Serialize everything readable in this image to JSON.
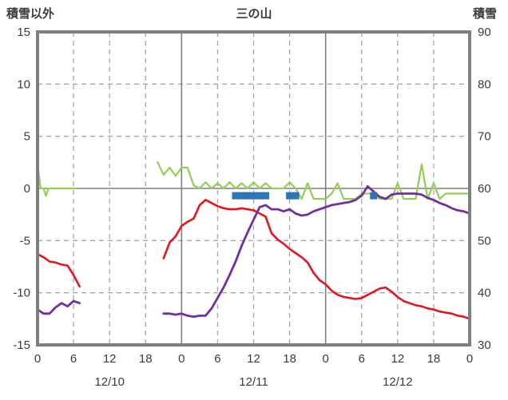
{
  "header": {
    "left_axis_title": "積雪以外",
    "chart_title": "三の山",
    "right_axis_title": "積雪"
  },
  "colors": {
    "background": "#ffffff",
    "frame": "#7f7f7f",
    "grid": "#a6a6a6",
    "text": "#3b3b3b",
    "red_series": "#e8141c",
    "purple_series": "#7030a0",
    "green_series": "#92d050",
    "blue_marker": "#2e75b6"
  },
  "chart_data": {
    "type": "line",
    "title": "三の山",
    "grid": true,
    "legend_position": "none",
    "left_axis": {
      "title": "積雪以外",
      "min": -15,
      "max": 15,
      "ticks": [
        15,
        10,
        5,
        0,
        -5,
        -10,
        -15
      ]
    },
    "right_axis": {
      "title": "積雪",
      "min": 30,
      "max": 90,
      "ticks": [
        90,
        80,
        70,
        60,
        50,
        40,
        30
      ]
    },
    "x_axis": {
      "min": 0,
      "max": 72,
      "tick_hours": [
        0,
        6,
        12,
        18,
        24,
        30,
        36,
        42,
        48,
        54,
        60,
        66,
        72
      ],
      "tick_labels": [
        "0",
        "6",
        "12",
        "18",
        "0",
        "6",
        "12",
        "18",
        "0",
        "6",
        "12",
        "18",
        "0"
      ],
      "day_boundaries": [
        24,
        48
      ],
      "day_labels": [
        {
          "label": "12/10",
          "center_hour": 12
        },
        {
          "label": "12/11",
          "center_hour": 36
        },
        {
          "label": "12/12",
          "center_hour": 60
        }
      ]
    },
    "series": [
      {
        "name": "green-series",
        "color": "#92d050",
        "axis": "left",
        "width": 2.2,
        "segments": [
          {
            "x": [
              0,
              0.5,
              1,
              1.4,
              1.8,
              6.5
            ],
            "y": [
              2.3,
              0,
              0,
              -0.7,
              0,
              0
            ]
          },
          {
            "x": [
              20,
              21,
              22,
              23,
              24,
              25,
              26,
              27,
              28,
              29,
              30,
              31,
              32,
              33,
              34,
              35,
              36,
              37,
              38,
              39,
              40,
              41,
              42,
              43,
              44,
              45,
              46,
              47,
              48,
              49,
              50,
              51,
              52,
              53,
              54,
              55,
              56,
              57,
              58,
              59,
              60,
              61,
              62,
              63,
              64,
              65,
              66,
              67,
              68,
              69,
              70,
              71,
              72
            ],
            "y": [
              2.5,
              1.3,
              2.0,
              1.2,
              2.0,
              2.0,
              0.3,
              0,
              0.6,
              0,
              0.5,
              0,
              0.6,
              0,
              0.5,
              0,
              0.6,
              0,
              0.5,
              0,
              0,
              0,
              0.6,
              0,
              -1.0,
              0.5,
              -1.0,
              -1.0,
              -1.0,
              -0.5,
              0.5,
              -1.0,
              -1.0,
              -1.0,
              -0.5,
              -0.5,
              -0.5,
              -1.0,
              -1.0,
              -1.0,
              0.5,
              -1.0,
              -1.0,
              -1.0,
              2.3,
              -1.0,
              0.5,
              -1.0,
              -0.5,
              -0.5,
              -0.5,
              -0.5,
              -0.5
            ]
          }
        ]
      },
      {
        "name": "red-series",
        "color": "#e8141c",
        "axis": "left",
        "width": 2.6,
        "segments": [
          {
            "x": [
              0,
              1,
              2,
              3,
              4,
              5,
              6,
              7
            ],
            "y": [
              -6.3,
              -6.6,
              -7.0,
              -7.1,
              -7.3,
              -7.4,
              -8.3,
              -9.4
            ]
          },
          {
            "x": [
              21,
              22,
              23,
              24,
              25,
              26,
              27,
              28,
              29,
              30,
              31,
              32,
              33,
              34,
              35,
              36,
              37,
              38,
              39,
              40,
              41,
              42,
              43,
              44,
              45,
              46,
              47,
              48,
              49,
              50,
              51,
              52,
              53,
              54,
              55,
              56,
              57,
              58,
              59,
              60,
              61,
              62,
              63,
              64,
              65,
              66,
              67,
              68,
              69,
              70,
              71,
              72
            ],
            "y": [
              -6.7,
              -5.2,
              -4.6,
              -3.6,
              -3.2,
              -2.9,
              -1.6,
              -1.1,
              -1.4,
              -1.7,
              -1.9,
              -2.0,
              -2.0,
              -1.9,
              -2.0,
              -2.1,
              -2.4,
              -2.7,
              -4.3,
              -4.9,
              -5.3,
              -5.8,
              -6.2,
              -6.6,
              -7.1,
              -8.1,
              -8.8,
              -9.2,
              -9.8,
              -10.2,
              -10.4,
              -10.5,
              -10.6,
              -10.5,
              -10.2,
              -9.9,
              -9.6,
              -9.5,
              -9.9,
              -10.4,
              -10.8,
              -11.0,
              -11.2,
              -11.3,
              -11.5,
              -11.6,
              -11.8,
              -11.9,
              -12.0,
              -12.2,
              -12.3,
              -12.5
            ]
          }
        ]
      },
      {
        "name": "purple-series",
        "color": "#7030a0",
        "axis": "right",
        "width": 2.8,
        "segments": [
          {
            "x": [
              0,
              1,
              2,
              3,
              4,
              5,
              6,
              7
            ],
            "y": [
              36.8,
              36,
              36,
              37.2,
              38,
              37.4,
              38.4,
              38
            ]
          },
          {
            "x": [
              21,
              22,
              23,
              24,
              25,
              26,
              27,
              28,
              29,
              30,
              31,
              32,
              33,
              34,
              35,
              36,
              37,
              38,
              39,
              40,
              41,
              42,
              43,
              44,
              45,
              46,
              47,
              48,
              49,
              50,
              51,
              52,
              53,
              54,
              55,
              56,
              57,
              58,
              59,
              60,
              61,
              62,
              63,
              64,
              65,
              66,
              67,
              68,
              69,
              70,
              71,
              72
            ],
            "y": [
              36,
              36,
              35.8,
              36,
              35.6,
              35.4,
              35.6,
              35.6,
              37,
              39,
              41,
              43.4,
              46,
              49,
              51.6,
              54,
              56.4,
              56.8,
              56,
              56,
              55.6,
              56,
              55.2,
              54.8,
              55,
              55.6,
              56,
              56.4,
              56.8,
              57,
              57.2,
              57.4,
              57.8,
              58.6,
              60.4,
              59.4,
              58.4,
              58,
              58.8,
              59,
              59,
              59,
              59,
              58.8,
              58.2,
              57.8,
              57.2,
              56.8,
              56.2,
              55.8,
              55.6,
              55.2
            ]
          }
        ]
      }
    ],
    "markers": {
      "name": "blue-square-markers",
      "color": "#2e75b6",
      "axis": "left",
      "value": -0.7,
      "size": 9,
      "hours": [
        33,
        34,
        35,
        36,
        37,
        38,
        42,
        43,
        56
      ]
    }
  }
}
